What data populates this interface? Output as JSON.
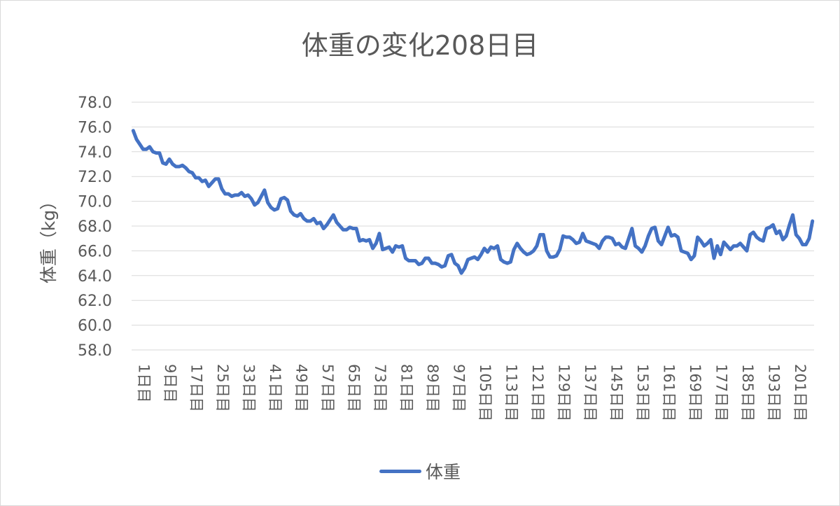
{
  "chart_data": {
    "type": "line",
    "title": "体重の変化208日目",
    "ylabel": "体重（kg）",
    "xlabel": "",
    "ylim": [
      58.0,
      78.0
    ],
    "y_ticks": [
      "58.0",
      "60.0",
      "62.0",
      "64.0",
      "66.0",
      "68.0",
      "70.0",
      "72.0",
      "74.0",
      "76.0",
      "78.0"
    ],
    "x_tick_labels": [
      "1日目",
      "9日目",
      "17日目",
      "25日目",
      "33日目",
      "41日目",
      "49日目",
      "57日目",
      "65日目",
      "73日目",
      "81日目",
      "89日目",
      "97日目",
      "105日目",
      "113日目",
      "121日目",
      "129日目",
      "137日目",
      "145日目",
      "153日目",
      "161日目",
      "169日目",
      "177日目",
      "185日目",
      "193日目",
      "201日目"
    ],
    "grid": true,
    "legend_position": "bottom",
    "series": [
      {
        "name": "体重",
        "color": "#4472c4",
        "x": [
          1,
          2,
          3,
          4,
          5,
          6,
          7,
          8,
          9,
          10,
          11,
          12,
          13,
          14,
          15,
          16,
          17,
          18,
          19,
          20,
          21,
          22,
          23,
          24,
          25,
          26,
          27,
          28,
          29,
          30,
          31,
          32,
          33,
          34,
          35,
          36,
          37,
          38,
          39,
          40,
          41,
          42,
          43,
          44,
          45,
          46,
          47,
          48,
          49,
          50,
          51,
          52,
          53,
          54,
          55,
          56,
          57,
          58,
          59,
          60,
          61,
          62,
          63,
          64,
          65,
          66,
          67,
          68,
          69,
          70,
          71,
          72,
          73,
          74,
          75,
          76,
          77,
          78,
          79,
          80,
          81,
          82,
          83,
          84,
          85,
          86,
          87,
          88,
          89,
          90,
          91,
          92,
          93,
          94,
          95,
          96,
          97,
          98,
          99,
          100,
          101,
          102,
          103,
          104,
          105,
          106,
          107,
          108,
          109,
          110,
          111,
          112,
          113,
          114,
          115,
          116,
          117,
          118,
          119,
          120,
          121,
          122,
          123,
          124,
          125,
          126,
          127,
          128,
          129,
          130,
          131,
          132,
          133,
          134,
          135,
          136,
          137,
          138,
          139,
          140,
          141,
          142,
          143,
          144,
          145,
          146,
          147,
          148,
          149,
          150,
          151,
          152,
          153,
          154,
          155,
          156,
          157,
          158,
          159,
          160,
          161,
          162,
          163,
          164,
          165,
          166,
          167,
          168,
          169,
          170,
          171,
          172,
          173,
          174,
          175,
          176,
          177,
          178,
          179,
          180,
          181,
          182,
          183,
          184,
          185,
          186,
          187,
          188,
          189,
          190,
          191,
          192,
          193,
          194,
          195,
          196,
          197,
          198,
          199,
          200,
          201,
          202,
          203,
          204,
          205,
          206,
          207,
          208
        ],
        "values": [
          75.7,
          75.0,
          74.6,
          74.2,
          74.2,
          74.4,
          74.0,
          73.9,
          73.9,
          73.1,
          73.0,
          73.4,
          73.0,
          72.8,
          72.8,
          72.9,
          72.7,
          72.4,
          72.3,
          71.9,
          71.9,
          71.6,
          71.7,
          71.2,
          71.5,
          71.8,
          71.8,
          71.0,
          70.6,
          70.6,
          70.4,
          70.5,
          70.5,
          70.7,
          70.4,
          70.5,
          70.2,
          69.7,
          69.9,
          70.4,
          70.9,
          69.9,
          69.5,
          69.3,
          69.4,
          70.2,
          70.3,
          70.1,
          69.2,
          68.9,
          68.8,
          69.0,
          68.6,
          68.4,
          68.4,
          68.6,
          68.2,
          68.3,
          67.8,
          68.1,
          68.5,
          68.9,
          68.3,
          68.0,
          67.7,
          67.7,
          67.9,
          67.8,
          67.8,
          66.8,
          66.9,
          66.8,
          66.9,
          66.2,
          66.6,
          67.4,
          66.1,
          66.2,
          66.3,
          65.9,
          66.4,
          66.3,
          66.4,
          65.4,
          65.2,
          65.2,
          65.2,
          64.9,
          65.0,
          65.4,
          65.4,
          65.0,
          65.0,
          64.9,
          64.7,
          64.8,
          65.6,
          65.7,
          65.0,
          64.8,
          64.2,
          64.6,
          65.3,
          65.4,
          65.5,
          65.3,
          65.7,
          66.2,
          65.9,
          66.3,
          66.2,
          66.4,
          65.3,
          65.1,
          65.0,
          65.1,
          66.1,
          66.6,
          66.2,
          65.9,
          65.7,
          65.8,
          66.0,
          66.4,
          67.3,
          67.3,
          66.0,
          65.5,
          65.5,
          65.6,
          66.1,
          67.2,
          67.1,
          67.1,
          66.9,
          66.6,
          66.7,
          67.4,
          66.8,
          66.7,
          66.6,
          66.5,
          66.2,
          66.8,
          67.1,
          67.1,
          67.0,
          66.5,
          66.6,
          66.3,
          66.2,
          67.0,
          67.8,
          66.4,
          66.2,
          65.9,
          66.4,
          67.2,
          67.8,
          67.9,
          66.8,
          66.5,
          67.2,
          67.9,
          67.2,
          67.3,
          67.1,
          66.0,
          65.9,
          65.8,
          65.3,
          65.6,
          67.1,
          66.8,
          66.4,
          66.6,
          66.9,
          65.4,
          66.4,
          65.7,
          66.7,
          66.4,
          66.1,
          66.4,
          66.4,
          66.6,
          66.3,
          66.0,
          67.3,
          67.5,
          67.1,
          66.9,
          66.8,
          67.8,
          67.9,
          68.1,
          67.4,
          67.6,
          66.9,
          67.2,
          68.1,
          68.9,
          67.3,
          67.0,
          66.5,
          66.5,
          67.0,
          68.4
        ]
      }
    ]
  }
}
